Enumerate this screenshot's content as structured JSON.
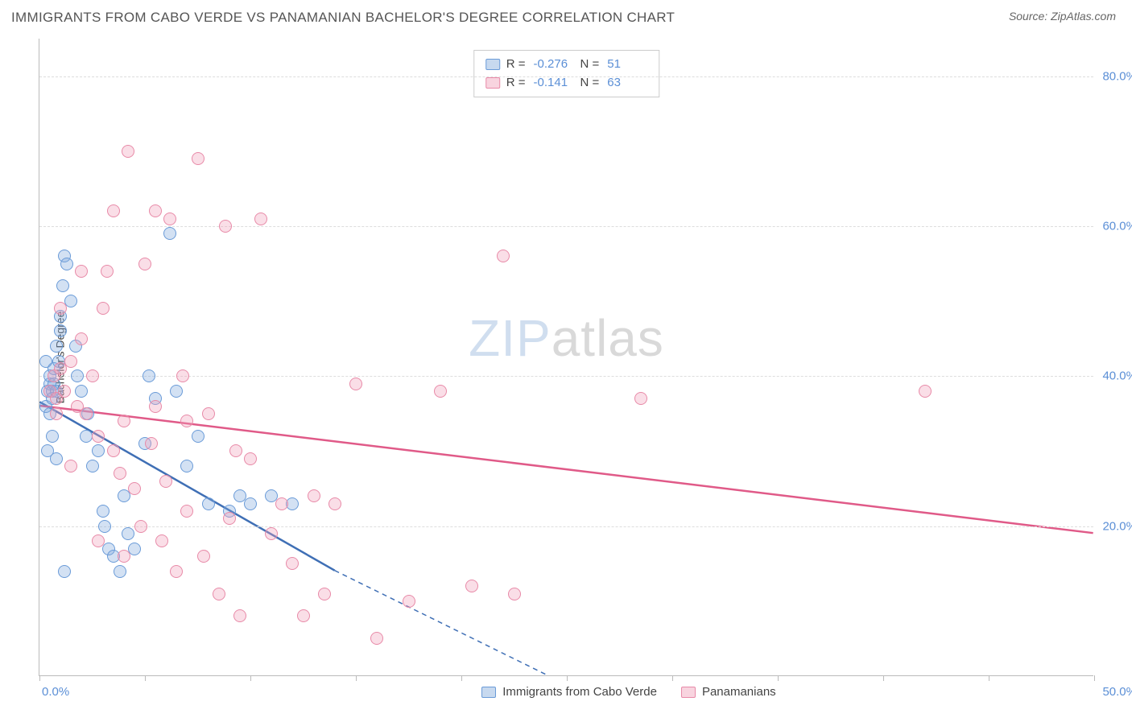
{
  "header": {
    "title": "IMMIGRANTS FROM CABO VERDE VS PANAMANIAN BACHELOR'S DEGREE CORRELATION CHART",
    "source": "Source: ZipAtlas.com"
  },
  "chart": {
    "type": "scatter",
    "ylabel": "Bachelor's Degree",
    "xlim": [
      0,
      50
    ],
    "ylim": [
      0,
      85
    ],
    "x_ticks": [
      0,
      5,
      10,
      15,
      20,
      25,
      30,
      35,
      40,
      45,
      50
    ],
    "y_ticks": [
      20,
      40,
      60,
      80
    ],
    "y_tick_labels": [
      "20.0%",
      "40.0%",
      "60.0%",
      "80.0%"
    ],
    "x_axis_min_label": "0.0%",
    "x_axis_max_label": "50.0%",
    "background_color": "#ffffff",
    "grid_color": "#dddddd",
    "axis_color": "#bbbbbb",
    "tick_label_color": "#5b8fd6",
    "point_radius": 8,
    "series": [
      {
        "name": "Immigrants from Cabo Verde",
        "color_fill": "rgba(130,170,220,0.35)",
        "color_stroke": "#6a9bd8",
        "R": "-0.276",
        "N": "51",
        "points": [
          [
            0.3,
            36
          ],
          [
            0.4,
            38
          ],
          [
            0.5,
            39
          ],
          [
            0.5,
            40
          ],
          [
            0.6,
            38
          ],
          [
            0.5,
            35
          ],
          [
            0.6,
            37
          ],
          [
            0.7,
            39
          ],
          [
            0.7,
            41
          ],
          [
            0.8,
            38
          ],
          [
            0.8,
            44
          ],
          [
            0.9,
            42
          ],
          [
            1.0,
            46
          ],
          [
            1.0,
            48
          ],
          [
            1.1,
            52
          ],
          [
            1.2,
            56
          ],
          [
            1.3,
            55
          ],
          [
            1.5,
            50
          ],
          [
            1.7,
            44
          ],
          [
            1.8,
            40
          ],
          [
            2.0,
            38
          ],
          [
            2.2,
            32
          ],
          [
            2.3,
            35
          ],
          [
            2.5,
            28
          ],
          [
            2.8,
            30
          ],
          [
            3.0,
            22
          ],
          [
            3.1,
            20
          ],
          [
            3.3,
            17
          ],
          [
            3.5,
            16
          ],
          [
            3.8,
            14
          ],
          [
            4.0,
            24
          ],
          [
            4.2,
            19
          ],
          [
            4.5,
            17
          ],
          [
            5.0,
            31
          ],
          [
            5.2,
            40
          ],
          [
            5.5,
            37
          ],
          [
            6.2,
            59
          ],
          [
            6.5,
            38
          ],
          [
            7.0,
            28
          ],
          [
            7.5,
            32
          ],
          [
            8.0,
            23
          ],
          [
            9.0,
            22
          ],
          [
            9.5,
            24
          ],
          [
            10.0,
            23
          ],
          [
            11.0,
            24
          ],
          [
            12.0,
            23
          ],
          [
            0.4,
            30
          ],
          [
            0.6,
            32
          ],
          [
            0.8,
            29
          ],
          [
            1.2,
            14
          ],
          [
            0.3,
            42
          ]
        ],
        "regression": {
          "x1": 0,
          "y1": 36.5,
          "x2": 14,
          "y2": 14,
          "x2_dash": 27,
          "y2_dash": -4,
          "line_color": "#3f6fb5",
          "line_width": 2.5
        }
      },
      {
        "name": "Panamanians",
        "color_fill": "rgba(240,160,185,0.35)",
        "color_stroke": "#e88aa8",
        "R": "-0.141",
        "N": "63",
        "points": [
          [
            0.5,
            38
          ],
          [
            0.7,
            40
          ],
          [
            0.8,
            37
          ],
          [
            1.0,
            41
          ],
          [
            1.2,
            38
          ],
          [
            1.5,
            42
          ],
          [
            1.8,
            36
          ],
          [
            2.0,
            45
          ],
          [
            2.2,
            35
          ],
          [
            2.5,
            40
          ],
          [
            2.8,
            32
          ],
          [
            3.0,
            49
          ],
          [
            3.2,
            54
          ],
          [
            3.5,
            30
          ],
          [
            3.8,
            27
          ],
          [
            4.0,
            34
          ],
          [
            4.2,
            70
          ],
          [
            4.5,
            25
          ],
          [
            4.8,
            20
          ],
          [
            5.0,
            55
          ],
          [
            5.3,
            31
          ],
          [
            5.5,
            62
          ],
          [
            5.8,
            18
          ],
          [
            6.0,
            26
          ],
          [
            6.2,
            61
          ],
          [
            6.5,
            14
          ],
          [
            6.8,
            40
          ],
          [
            7.0,
            22
          ],
          [
            7.5,
            69
          ],
          [
            7.8,
            16
          ],
          [
            8.0,
            35
          ],
          [
            8.5,
            11
          ],
          [
            8.8,
            60
          ],
          [
            9.0,
            21
          ],
          [
            9.3,
            30
          ],
          [
            9.5,
            8
          ],
          [
            10.0,
            29
          ],
          [
            10.5,
            61
          ],
          [
            11.0,
            19
          ],
          [
            11.5,
            23
          ],
          [
            12.0,
            15
          ],
          [
            12.5,
            8
          ],
          [
            13.0,
            24
          ],
          [
            13.5,
            11
          ],
          [
            14.0,
            23
          ],
          [
            15.0,
            39
          ],
          [
            16.0,
            5
          ],
          [
            17.5,
            10
          ],
          [
            19.0,
            38
          ],
          [
            20.5,
            12
          ],
          [
            22.0,
            56
          ],
          [
            22.5,
            11
          ],
          [
            28.5,
            37
          ],
          [
            42.0,
            38
          ],
          [
            2.0,
            54
          ],
          [
            3.5,
            62
          ],
          [
            1.0,
            49
          ],
          [
            1.5,
            28
          ],
          [
            2.8,
            18
          ],
          [
            4.0,
            16
          ],
          [
            5.5,
            36
          ],
          [
            7.0,
            34
          ],
          [
            0.8,
            35
          ]
        ],
        "regression": {
          "x1": 0,
          "y1": 36,
          "x2": 50,
          "y2": 19,
          "line_color": "#e05a88",
          "line_width": 2.5
        }
      }
    ],
    "legend_bottom": [
      {
        "label": "Immigrants from Cabo Verde",
        "class": "blue"
      },
      {
        "label": "Panamanians",
        "class": "pink"
      }
    ],
    "watermark": {
      "zip": "ZIP",
      "atlas": "atlas"
    }
  }
}
